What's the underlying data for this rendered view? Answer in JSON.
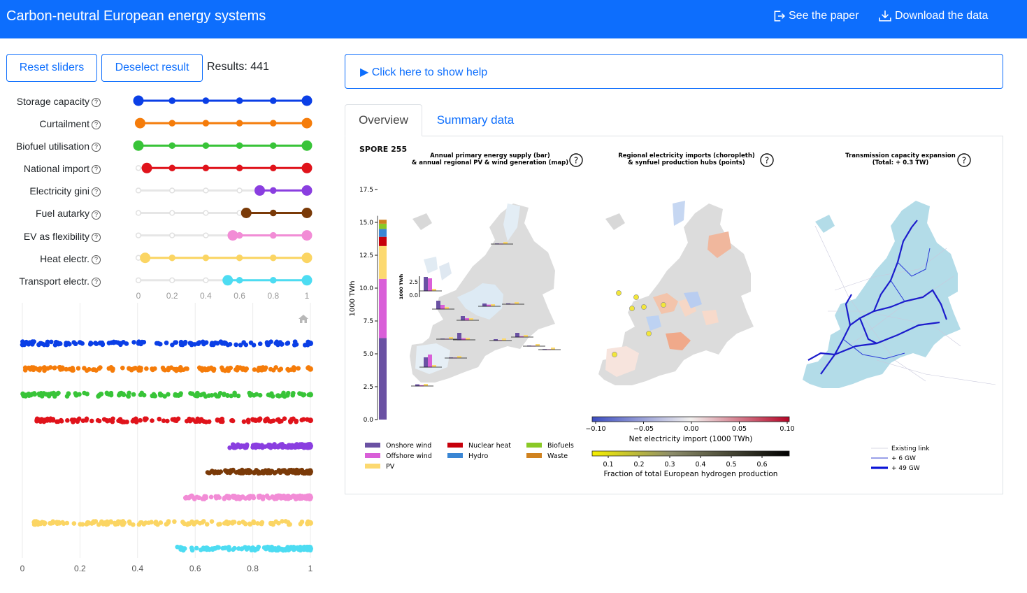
{
  "header": {
    "title": "Carbon-neutral European energy systems",
    "paper_link": "See the paper",
    "data_link": "Download the data"
  },
  "controls": {
    "reset_label": "Reset sliders",
    "deselect_label": "Deselect result",
    "results_text": "Results: 441"
  },
  "sliders": [
    {
      "label": "Storage capacity",
      "min": 0.0,
      "max": 1.0,
      "color": "#0b3fe6"
    },
    {
      "label": "Curtailment",
      "min": 0.01,
      "max": 1.0,
      "color": "#f57c0a"
    },
    {
      "label": "Biofuel utilisation",
      "min": 0.0,
      "max": 1.0,
      "color": "#38c438"
    },
    {
      "label": "National import",
      "min": 0.05,
      "max": 1.0,
      "color": "#e0131b"
    },
    {
      "label": "Electricity gini",
      "min": 0.72,
      "max": 1.0,
      "color": "#8a3ee0"
    },
    {
      "label": "Fuel autarky",
      "min": 0.64,
      "max": 1.0,
      "color": "#7a3a08"
    },
    {
      "label": "EV as flexibility",
      "min": 0.56,
      "max": 1.0,
      "color": "#f28cd6"
    },
    {
      "label": "Heat electr.",
      "min": 0.04,
      "max": 1.0,
      "color": "#fbd563"
    },
    {
      "label": "Transport electr.",
      "min": 0.53,
      "max": 1.0,
      "color": "#4ddcf2"
    }
  ],
  "slider_ticks": [
    "0",
    "0.2",
    "0.4",
    "0.6",
    "0.8",
    "1"
  ],
  "strip_ticks": [
    "0",
    "0.2",
    "0.4",
    "0.6",
    "0.8",
    "1"
  ],
  "help": {
    "label": "▶ Click here to show help"
  },
  "tabs": [
    {
      "label": "Overview"
    },
    {
      "label": "Summary data"
    }
  ],
  "figure": {
    "spore": "SPORE 255",
    "panel1_title_1": "Annual primary energy supply (bar)",
    "panel1_title_2": "& annual regional PV & wind generation (map)",
    "panel2_title_1": "Regional electricity imports (choropleth)",
    "panel2_title_2": "& synfuel production hubs (points)",
    "panel3_title_1": "Transmission capacity expansion",
    "panel3_title_2": "(Total: + 0.3 TW)",
    "y_axis_label": "1000 TWh",
    "y_ticks": [
      "0.0",
      "2.5",
      "5.0",
      "7.5",
      "10.0",
      "12.5",
      "15.0",
      "17.5"
    ],
    "inset_label": "1000 TWh",
    "inset_ticks": [
      "0.0",
      "2.5"
    ],
    "legend": [
      {
        "label": "Onshore wind",
        "color": "#6a51a3"
      },
      {
        "label": "Offshore wind",
        "color": "#d95fd8"
      },
      {
        "label": "PV",
        "color": "#fcd970"
      },
      {
        "label": "Nuclear heat",
        "color": "#c7000b"
      },
      {
        "label": "Hydro",
        "color": "#3a86d4"
      },
      {
        "label": "Biofuels",
        "color": "#8ac926"
      },
      {
        "label": "Waste",
        "color": "#d0821f"
      }
    ],
    "import_cbar_ticks": [
      "−0.10",
      "−0.05",
      "0.00",
      "0.05",
      "0.10"
    ],
    "import_cbar_label": "Net electricity import (1000 TWh)",
    "h2_cbar_ticks": [
      "0.1",
      "0.2",
      "0.3",
      "0.4",
      "0.5",
      "0.6"
    ],
    "h2_cbar_label": "Fraction of total European hydrogen production",
    "trans_legend": [
      "Existing link",
      "+ 6 GW",
      "+ 49 GW"
    ]
  },
  "chart_data": {
    "type": "bar",
    "categories": [
      "SPORE 255"
    ],
    "ylabel": "1000 TWh",
    "ylim": [
      0,
      17.5
    ],
    "series": [
      {
        "name": "Onshore wind",
        "values": [
          6.2
        ]
      },
      {
        "name": "Offshore wind",
        "values": [
          4.5
        ]
      },
      {
        "name": "PV",
        "values": [
          2.5
        ]
      },
      {
        "name": "Nuclear heat",
        "values": [
          0.7
        ]
      },
      {
        "name": "Hydro",
        "values": [
          0.6
        ]
      },
      {
        "name": "Biofuels",
        "values": [
          0.4
        ]
      },
      {
        "name": "Waste",
        "values": [
          0.3
        ]
      }
    ]
  }
}
